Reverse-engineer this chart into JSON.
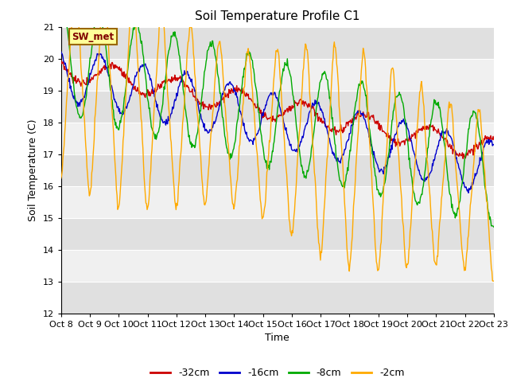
{
  "title": "Soil Temperature Profile C1",
  "xlabel": "Time",
  "ylabel": "Soil Temperature (C)",
  "ylim": [
    12.0,
    21.0
  ],
  "yticks": [
    12.0,
    13.0,
    14.0,
    15.0,
    16.0,
    17.0,
    18.0,
    19.0,
    20.0,
    21.0
  ],
  "xtick_labels": [
    "Oct 8",
    "Oct 9",
    "Oct 10",
    "Oct 11",
    "Oct 12",
    "Oct 13",
    "Oct 14",
    "Oct 15",
    "Oct 16",
    "Oct 17",
    "Oct 18",
    "Oct 19",
    "Oct 20",
    "Oct 21",
    "Oct 22",
    "Oct 23"
  ],
  "annotation_text": "SW_met",
  "annotation_bg": "#ffff99",
  "annotation_border": "#996600",
  "colors": {
    "-32cm": "#cc0000",
    "-16cm": "#0000cc",
    "-8cm": "#00aa00",
    "-2cm": "#ffaa00"
  },
  "legend_labels": [
    "-32cm",
    "-16cm",
    "-8cm",
    "-2cm"
  ],
  "plot_bg_light": "#f0f0f0",
  "plot_bg_dark": "#e0e0e0",
  "n_points": 720
}
